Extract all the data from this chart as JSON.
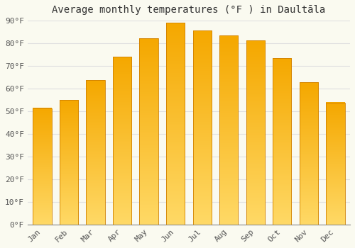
{
  "title": "Average monthly temperatures (°F ) in Daultāla",
  "months": [
    "Jan",
    "Feb",
    "Mar",
    "Apr",
    "May",
    "Jun",
    "Jul",
    "Aug",
    "Sep",
    "Oct",
    "Nov",
    "Dec"
  ],
  "values": [
    51.3,
    55.0,
    63.7,
    74.1,
    82.2,
    89.1,
    85.6,
    83.5,
    81.3,
    73.4,
    62.8,
    53.8
  ],
  "bar_color_dark": "#F5A800",
  "bar_color_light": "#FFD966",
  "ylim": [
    0,
    90
  ],
  "yticks": [
    0,
    10,
    20,
    30,
    40,
    50,
    60,
    70,
    80,
    90
  ],
  "ytick_labels": [
    "0°F",
    "10°F",
    "20°F",
    "30°F",
    "40°F",
    "50°F",
    "60°F",
    "70°F",
    "80°F",
    "90°F"
  ],
  "bg_color": "#FAFAF0",
  "grid_color": "#E0E0E0",
  "bar_edge_color": "#D08000",
  "title_fontsize": 10,
  "tick_fontsize": 8,
  "bar_width": 0.7,
  "gradient_steps": 100
}
